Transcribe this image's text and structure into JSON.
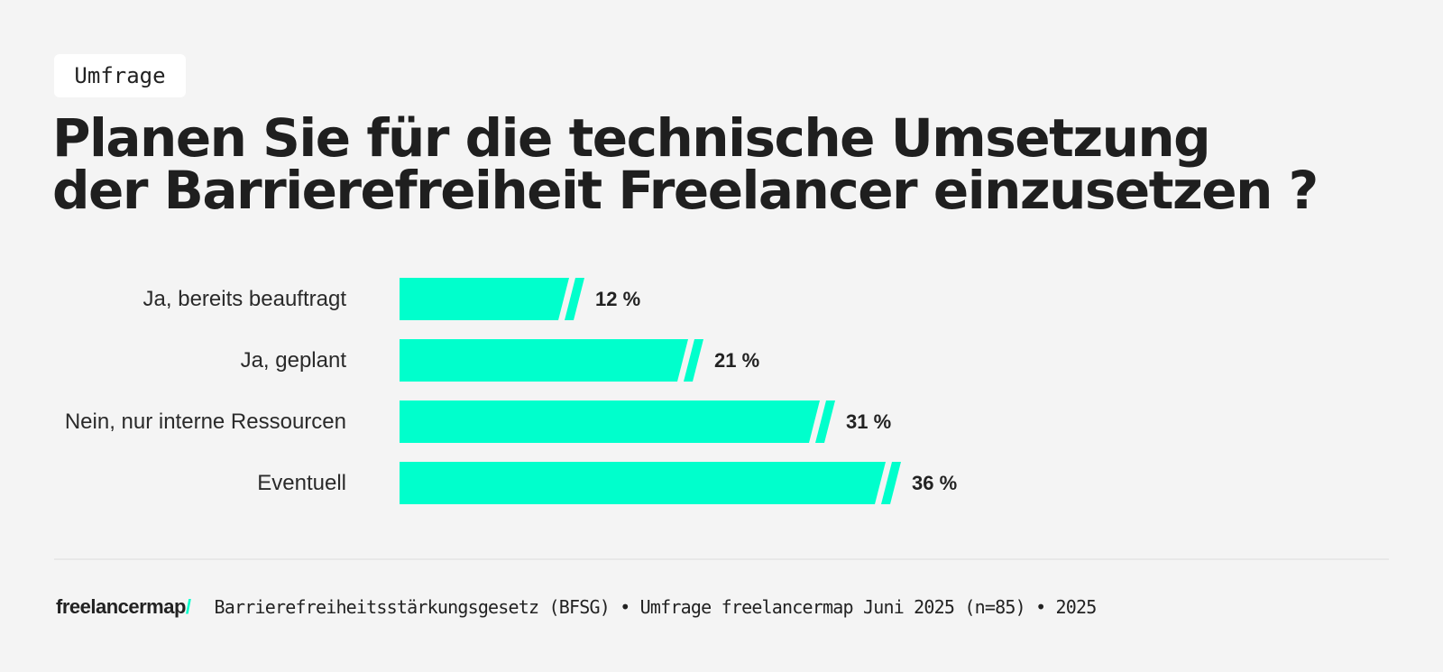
{
  "tag": "Umfrage",
  "title_line1": "Planen Sie für die technische Umsetzung",
  "title_line2": "der Barrierefreiheit Freelancer einzusetzen ?",
  "colors": {
    "bar": "#00ffcc",
    "background": "#f4f4f4",
    "text": "#222222"
  },
  "bars": [
    {
      "label": "Ja, bereits beauftragt",
      "value": 12,
      "value_label": "12 %"
    },
    {
      "label": "Ja, geplant",
      "value": 21,
      "value_label": "21 %"
    },
    {
      "label": "Nein, nur interne Ressourcen",
      "value": 31,
      "value_label": "31 %"
    },
    {
      "label": "Eventuell",
      "value": 36,
      "value_label": "36 %"
    }
  ],
  "footer": {
    "logo": "freelancermap",
    "logo_slash": "/",
    "source": "Barrierefreiheitsstärkungsgesetz (BFSG) • Umfrage freelancermap Juni 2025 (n=85) • 2025"
  },
  "chart_data": {
    "type": "bar",
    "orientation": "horizontal",
    "title": "Planen Sie für die technische Umsetzung der Barrierefreiheit Freelancer einzusetzen ?",
    "categories": [
      "Ja, bereits beauftragt",
      "Ja, geplant",
      "Nein, nur interne Ressourcen",
      "Eventuell"
    ],
    "values": [
      12,
      21,
      31,
      36
    ],
    "unit": "%",
    "xlabel": "",
    "ylabel": "",
    "grid": false,
    "legend": null,
    "source": "Barrierefreiheitsstärkungsgesetz (BFSG) • Umfrage freelancermap Juni 2025 (n=85) • 2025"
  }
}
